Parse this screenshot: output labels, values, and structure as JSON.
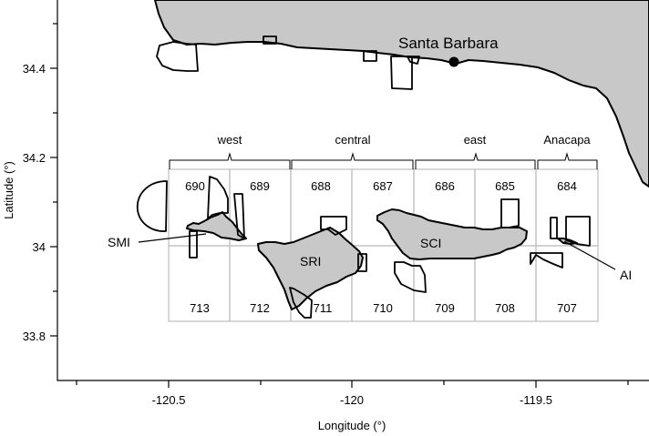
{
  "axes": {
    "xlabel": "Longitude (°)",
    "ylabel": "Latitude (°)",
    "x_ticks": [
      "-120.5",
      "-120",
      "-119.5"
    ],
    "y_ticks": [
      "34.4",
      "34.2",
      "34",
      "33.8"
    ]
  },
  "city": {
    "name": "Santa Barbara"
  },
  "regions": [
    "west",
    "central",
    "east",
    "Anacapa"
  ],
  "blocks": {
    "top": [
      "690",
      "689",
      "688",
      "687",
      "686",
      "685",
      "684"
    ],
    "bottom": [
      "713",
      "712",
      "711",
      "710",
      "709",
      "708",
      "707"
    ]
  },
  "islands": {
    "smi": "SMI",
    "sri": "SRI",
    "sci": "SCI",
    "ai": "AI"
  },
  "colors": {
    "land": "#c8c8c8",
    "grid": "#bdbdbd"
  }
}
